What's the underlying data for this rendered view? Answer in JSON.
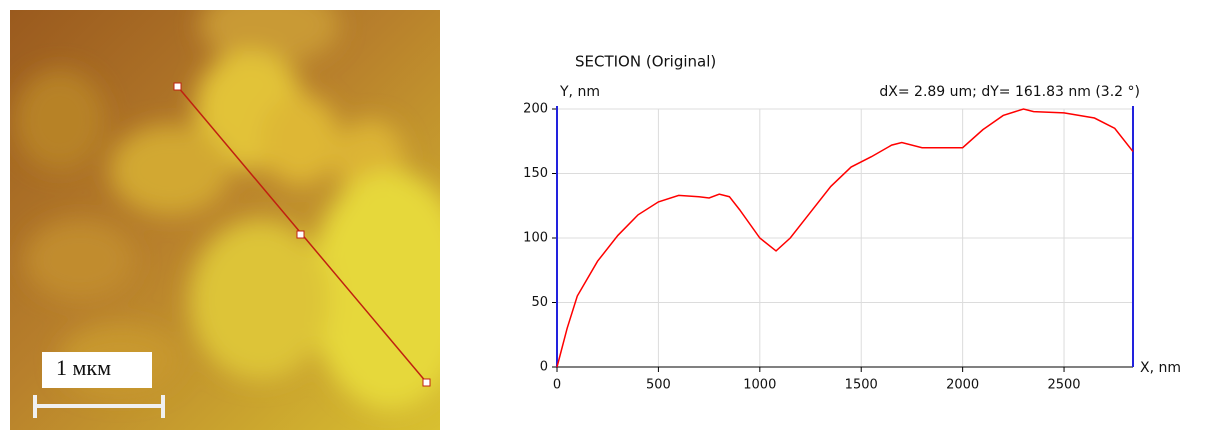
{
  "afm_image": {
    "scale_bar_label": "1 мкм"
  },
  "chart_data": {
    "type": "line",
    "title": "SECTION (Original)",
    "y_label": "Y, nm",
    "x_label": "X, nm",
    "annotation": "dX= 2.89 um; dY= 161.83 nm (3.2 °)",
    "x": [
      0,
      50,
      100,
      200,
      300,
      400,
      500,
      600,
      700,
      750,
      800,
      850,
      900,
      1000,
      1080,
      1150,
      1250,
      1350,
      1450,
      1550,
      1650,
      1700,
      1800,
      1900,
      2000,
      2100,
      2200,
      2300,
      2350,
      2500,
      2650,
      2750,
      2840
    ],
    "series": [
      {
        "color": "#ff0000",
        "values": [
          0,
          30,
          55,
          82,
          102,
          118,
          128,
          133,
          132,
          131,
          134,
          132,
          122,
          100,
          90,
          100,
          120,
          140,
          155,
          163,
          172,
          174,
          170,
          170,
          170,
          184,
          195,
          200,
          198,
          197,
          193,
          185,
          167
        ]
      }
    ],
    "xlim": [
      0,
      2840
    ],
    "ylim": [
      0,
      200
    ],
    "xticks": [
      0,
      500,
      1000,
      1500,
      2000,
      2500
    ],
    "yticks": [
      0,
      50,
      100,
      150,
      200
    ],
    "grid": true
  }
}
